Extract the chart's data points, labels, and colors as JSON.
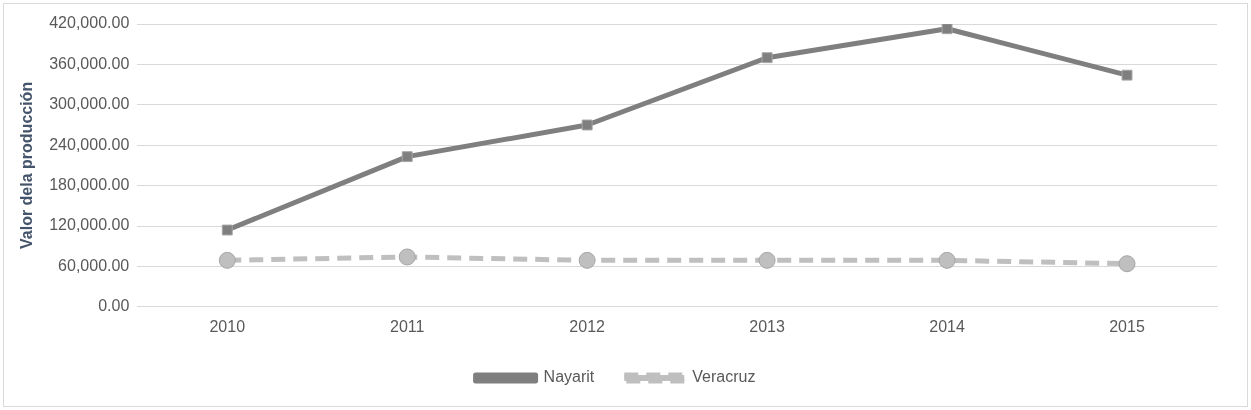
{
  "chart_data": {
    "type": "line",
    "ylabel": "Valor dela producción",
    "categories": [
      "2010",
      "2011",
      "2012",
      "2013",
      "2014",
      "2015"
    ],
    "series": [
      {
        "name": "Nayarit",
        "color": "#7f7f7f",
        "marker": "square",
        "line_style": "solid",
        "values": [
          114000,
          223000,
          270000,
          370000,
          413000,
          344000
        ]
      },
      {
        "name": "Veracruz",
        "color": "#bfbfbf",
        "marker": "circle",
        "line_style": "dashed",
        "values": [
          69000,
          74000,
          69000,
          69000,
          69000,
          64000
        ]
      }
    ],
    "ylim": [
      0,
      420000
    ],
    "yticks": [
      {
        "value": 0,
        "label": "0.00"
      },
      {
        "value": 60000,
        "label": "60,000.00"
      },
      {
        "value": 120000,
        "label": "120,000.00"
      },
      {
        "value": 180000,
        "label": "180,000.00"
      },
      {
        "value": 240000,
        "label": "240,000.00"
      },
      {
        "value": 300000,
        "label": "300,000.00"
      },
      {
        "value": 360000,
        "label": "360,000.00"
      },
      {
        "value": 420000,
        "label": "420,000.00"
      }
    ],
    "grid": "y",
    "legend": "bottom"
  }
}
